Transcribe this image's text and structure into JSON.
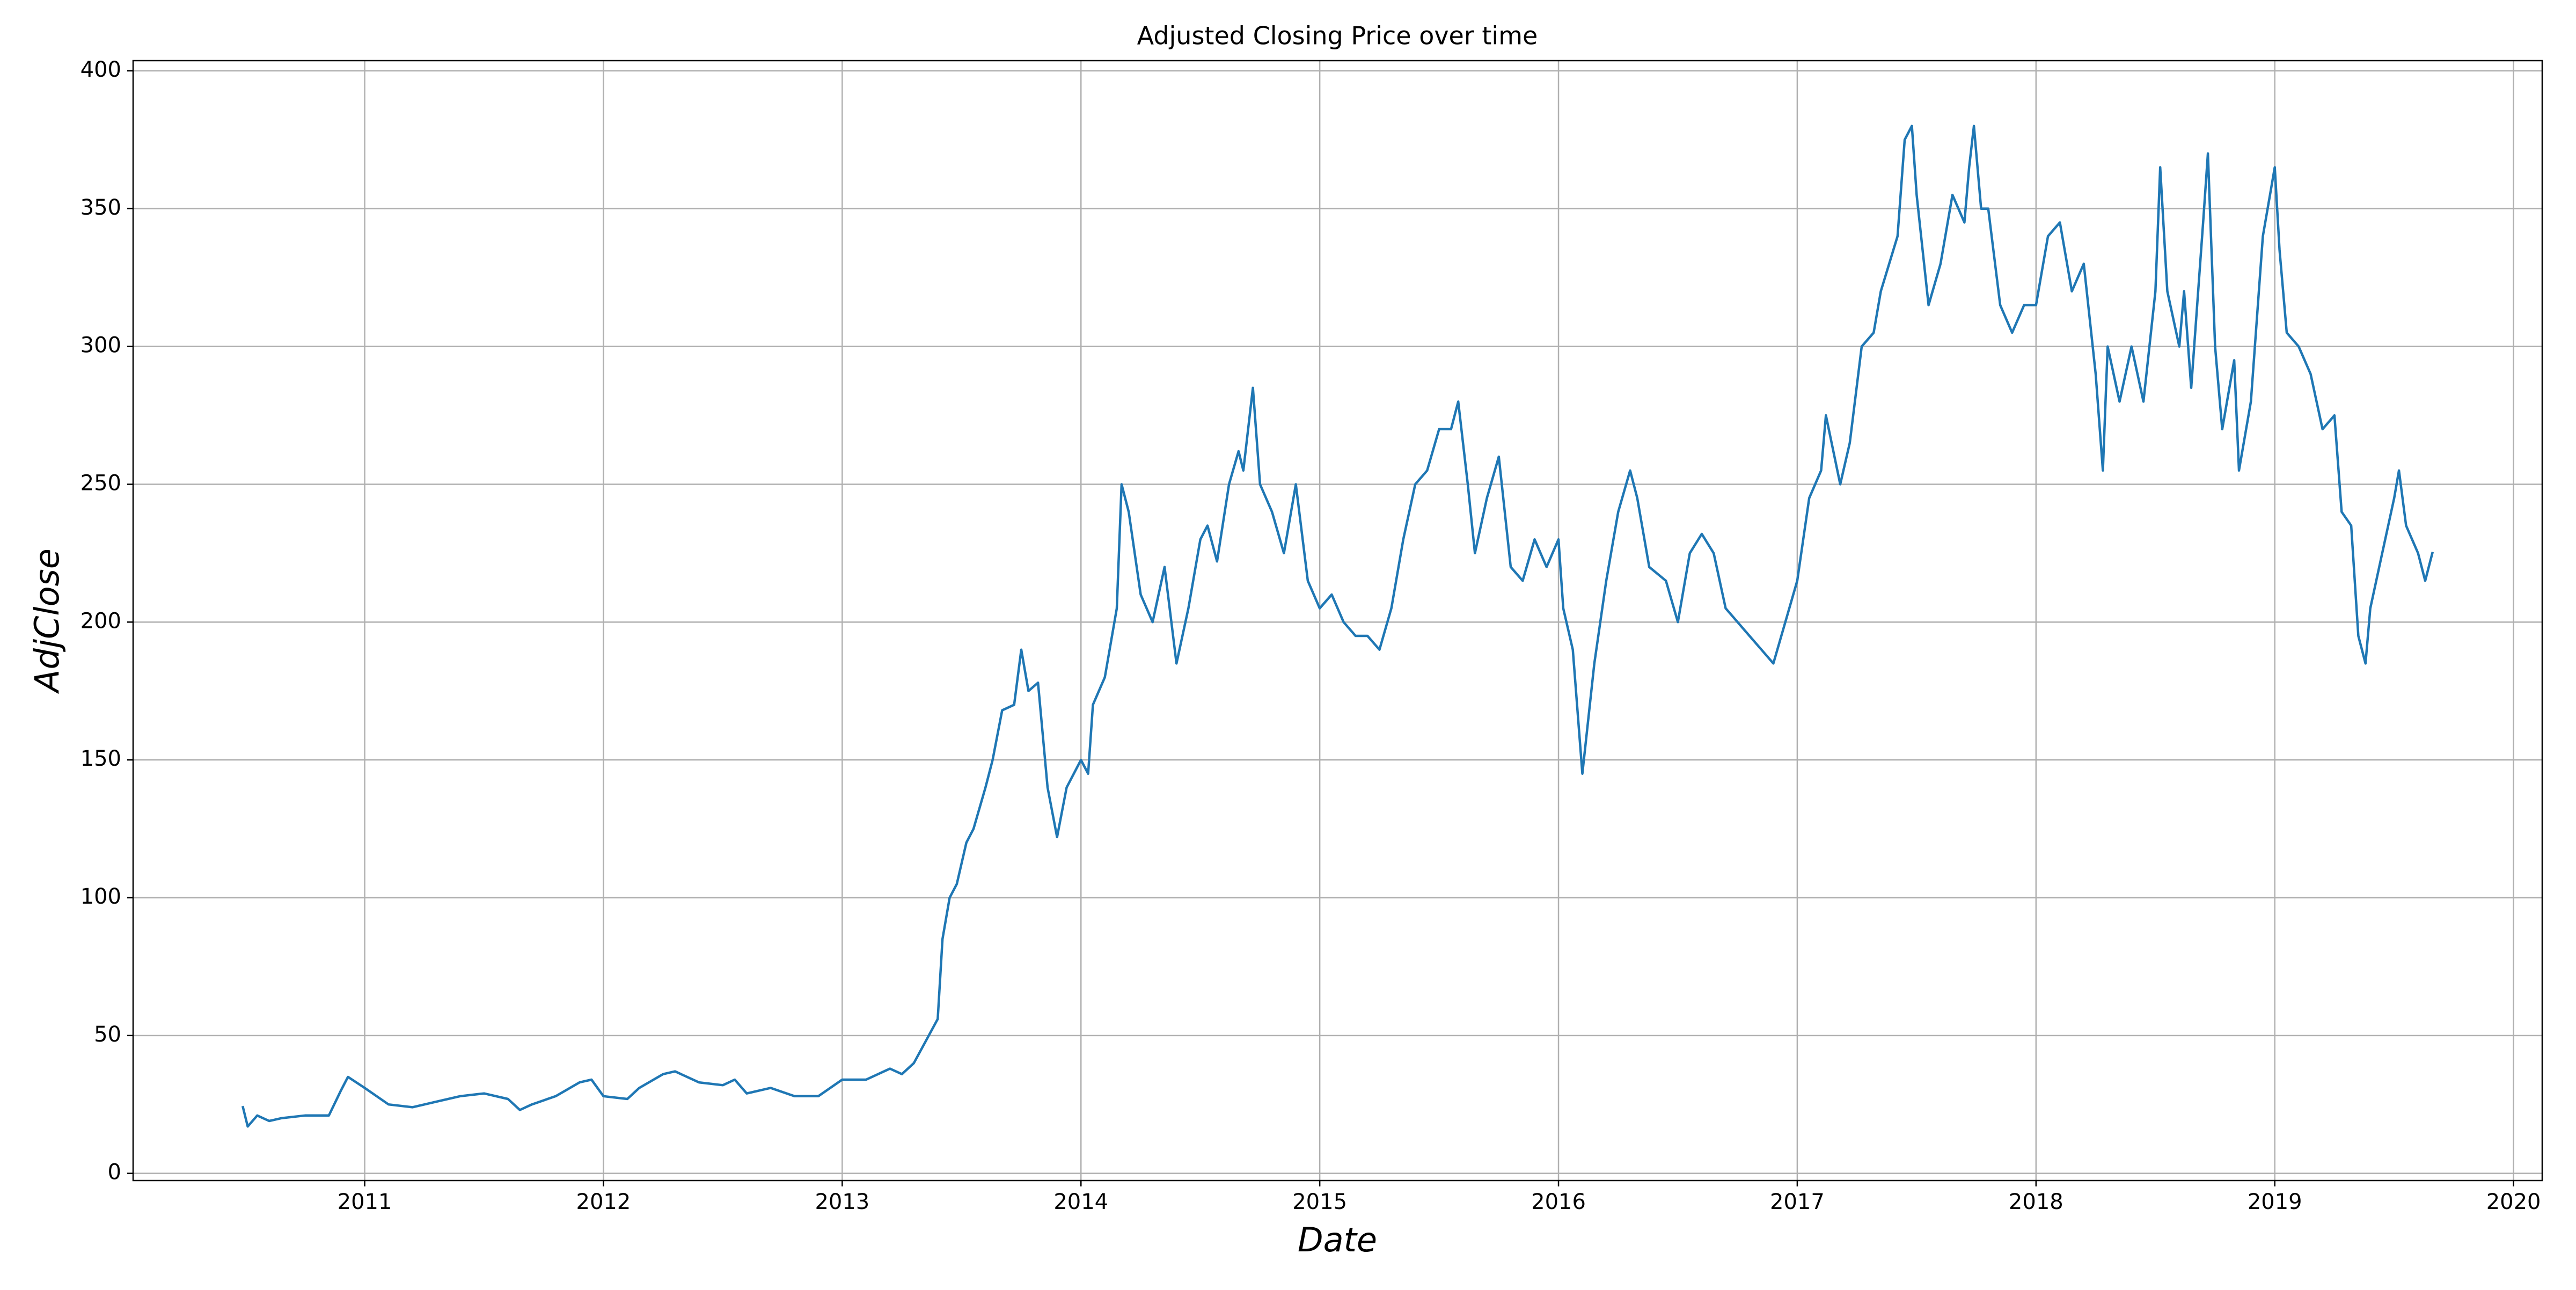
{
  "chart_data": {
    "type": "line",
    "title": "Adjusted Closing Price over time",
    "xlabel": "Date",
    "ylabel": "AdjClose",
    "color": "#1f77b4",
    "grid": true,
    "xlim": [
      2010.03,
      2020.12
    ],
    "ylim": [
      -2.6,
      403.7
    ],
    "xticks": [
      2011,
      2012,
      2013,
      2014,
      2015,
      2016,
      2017,
      2018,
      2019,
      2020
    ],
    "yticks": [
      0,
      50,
      100,
      150,
      200,
      250,
      300,
      350,
      400
    ],
    "x": [
      2010.49,
      2010.51,
      2010.55,
      2010.6,
      2010.65,
      2010.75,
      2010.85,
      2010.9,
      2010.93,
      2011.0,
      2011.05,
      2011.1,
      2011.2,
      2011.3,
      2011.4,
      2011.5,
      2011.6,
      2011.65,
      2011.7,
      2011.8,
      2011.9,
      2011.95,
      2012.0,
      2012.1,
      2012.15,
      2012.25,
      2012.3,
      2012.4,
      2012.5,
      2012.55,
      2012.6,
      2012.7,
      2012.8,
      2012.9,
      2013.0,
      2013.1,
      2013.2,
      2013.25,
      2013.3,
      2013.35,
      2013.4,
      2013.42,
      2013.45,
      2013.48,
      2013.52,
      2013.55,
      2013.6,
      2013.63,
      2013.67,
      2013.72,
      2013.75,
      2013.78,
      2013.82,
      2013.86,
      2013.9,
      2013.94,
      2014.0,
      2014.03,
      2014.05,
      2014.1,
      2014.15,
      2014.17,
      2014.2,
      2014.25,
      2014.3,
      2014.35,
      2014.4,
      2014.45,
      2014.5,
      2014.53,
      2014.57,
      2014.62,
      2014.66,
      2014.68,
      2014.72,
      2014.75,
      2014.8,
      2014.85,
      2014.9,
      2014.95,
      2015.0,
      2015.05,
      2015.1,
      2015.15,
      2015.2,
      2015.25,
      2015.3,
      2015.35,
      2015.4,
      2015.45,
      2015.5,
      2015.55,
      2015.58,
      2015.62,
      2015.65,
      2015.7,
      2015.75,
      2015.8,
      2015.85,
      2015.9,
      2015.95,
      2016.0,
      2016.02,
      2016.06,
      2016.1,
      2016.15,
      2016.2,
      2016.25,
      2016.3,
      2016.33,
      2016.38,
      2016.45,
      2016.5,
      2016.55,
      2016.6,
      2016.65,
      2016.7,
      2016.8,
      2016.85,
      2016.9,
      2016.95,
      2017.0,
      2017.05,
      2017.1,
      2017.12,
      2017.18,
      2017.22,
      2017.27,
      2017.32,
      2017.35,
      2017.42,
      2017.45,
      2017.48,
      2017.5,
      2017.55,
      2017.6,
      2017.65,
      2017.7,
      2017.72,
      2017.74,
      2017.77,
      2017.8,
      2017.85,
      2017.9,
      2017.95,
      2018.0,
      2018.05,
      2018.1,
      2018.15,
      2018.2,
      2018.25,
      2018.28,
      2018.3,
      2018.35,
      2018.4,
      2018.45,
      2018.5,
      2018.52,
      2018.55,
      2018.6,
      2018.62,
      2018.65,
      2018.7,
      2018.72,
      2018.75,
      2018.78,
      2018.83,
      2018.85,
      2018.9,
      2018.95,
      2019.0,
      2019.02,
      2019.05,
      2019.1,
      2019.15,
      2019.2,
      2019.25,
      2019.28,
      2019.32,
      2019.35,
      2019.38,
      2019.4,
      2019.45,
      2019.5,
      2019.52,
      2019.55,
      2019.6,
      2019.63,
      2019.66
    ],
    "values": [
      24,
      17,
      21,
      19,
      20,
      21,
      21,
      30,
      35,
      31,
      28,
      25,
      24,
      26,
      28,
      29,
      27,
      23,
      25,
      28,
      33,
      34,
      28,
      27,
      31,
      36,
      37,
      33,
      32,
      34,
      29,
      31,
      28,
      28,
      34,
      34,
      38,
      36,
      40,
      48,
      56,
      85,
      100,
      105,
      120,
      125,
      140,
      150,
      168,
      170,
      190,
      175,
      178,
      140,
      122,
      140,
      150,
      145,
      170,
      180,
      205,
      250,
      240,
      210,
      200,
      220,
      185,
      205,
      230,
      235,
      222,
      250,
      262,
      255,
      285,
      250,
      240,
      225,
      250,
      215,
      205,
      210,
      200,
      195,
      195,
      190,
      205,
      230,
      250,
      255,
      270,
      270,
      280,
      250,
      225,
      245,
      260,
      220,
      215,
      230,
      220,
      230,
      205,
      190,
      145,
      185,
      215,
      240,
      255,
      245,
      220,
      215,
      200,
      225,
      232,
      225,
      205,
      195,
      190,
      185,
      200,
      215,
      245,
      255,
      275,
      250,
      265,
      300,
      305,
      320,
      340,
      375,
      380,
      355,
      315,
      330,
      355,
      345,
      365,
      380,
      350,
      350,
      315,
      305,
      315,
      315,
      340,
      345,
      320,
      330,
      290,
      255,
      300,
      280,
      300,
      280,
      320,
      365,
      320,
      300,
      320,
      285,
      345,
      370,
      300,
      270,
      295,
      255,
      280,
      340,
      365,
      335,
      305,
      300,
      290,
      270,
      275,
      240,
      235,
      195,
      185,
      205,
      225,
      245,
      255,
      235,
      225,
      215,
      225
    ]
  }
}
